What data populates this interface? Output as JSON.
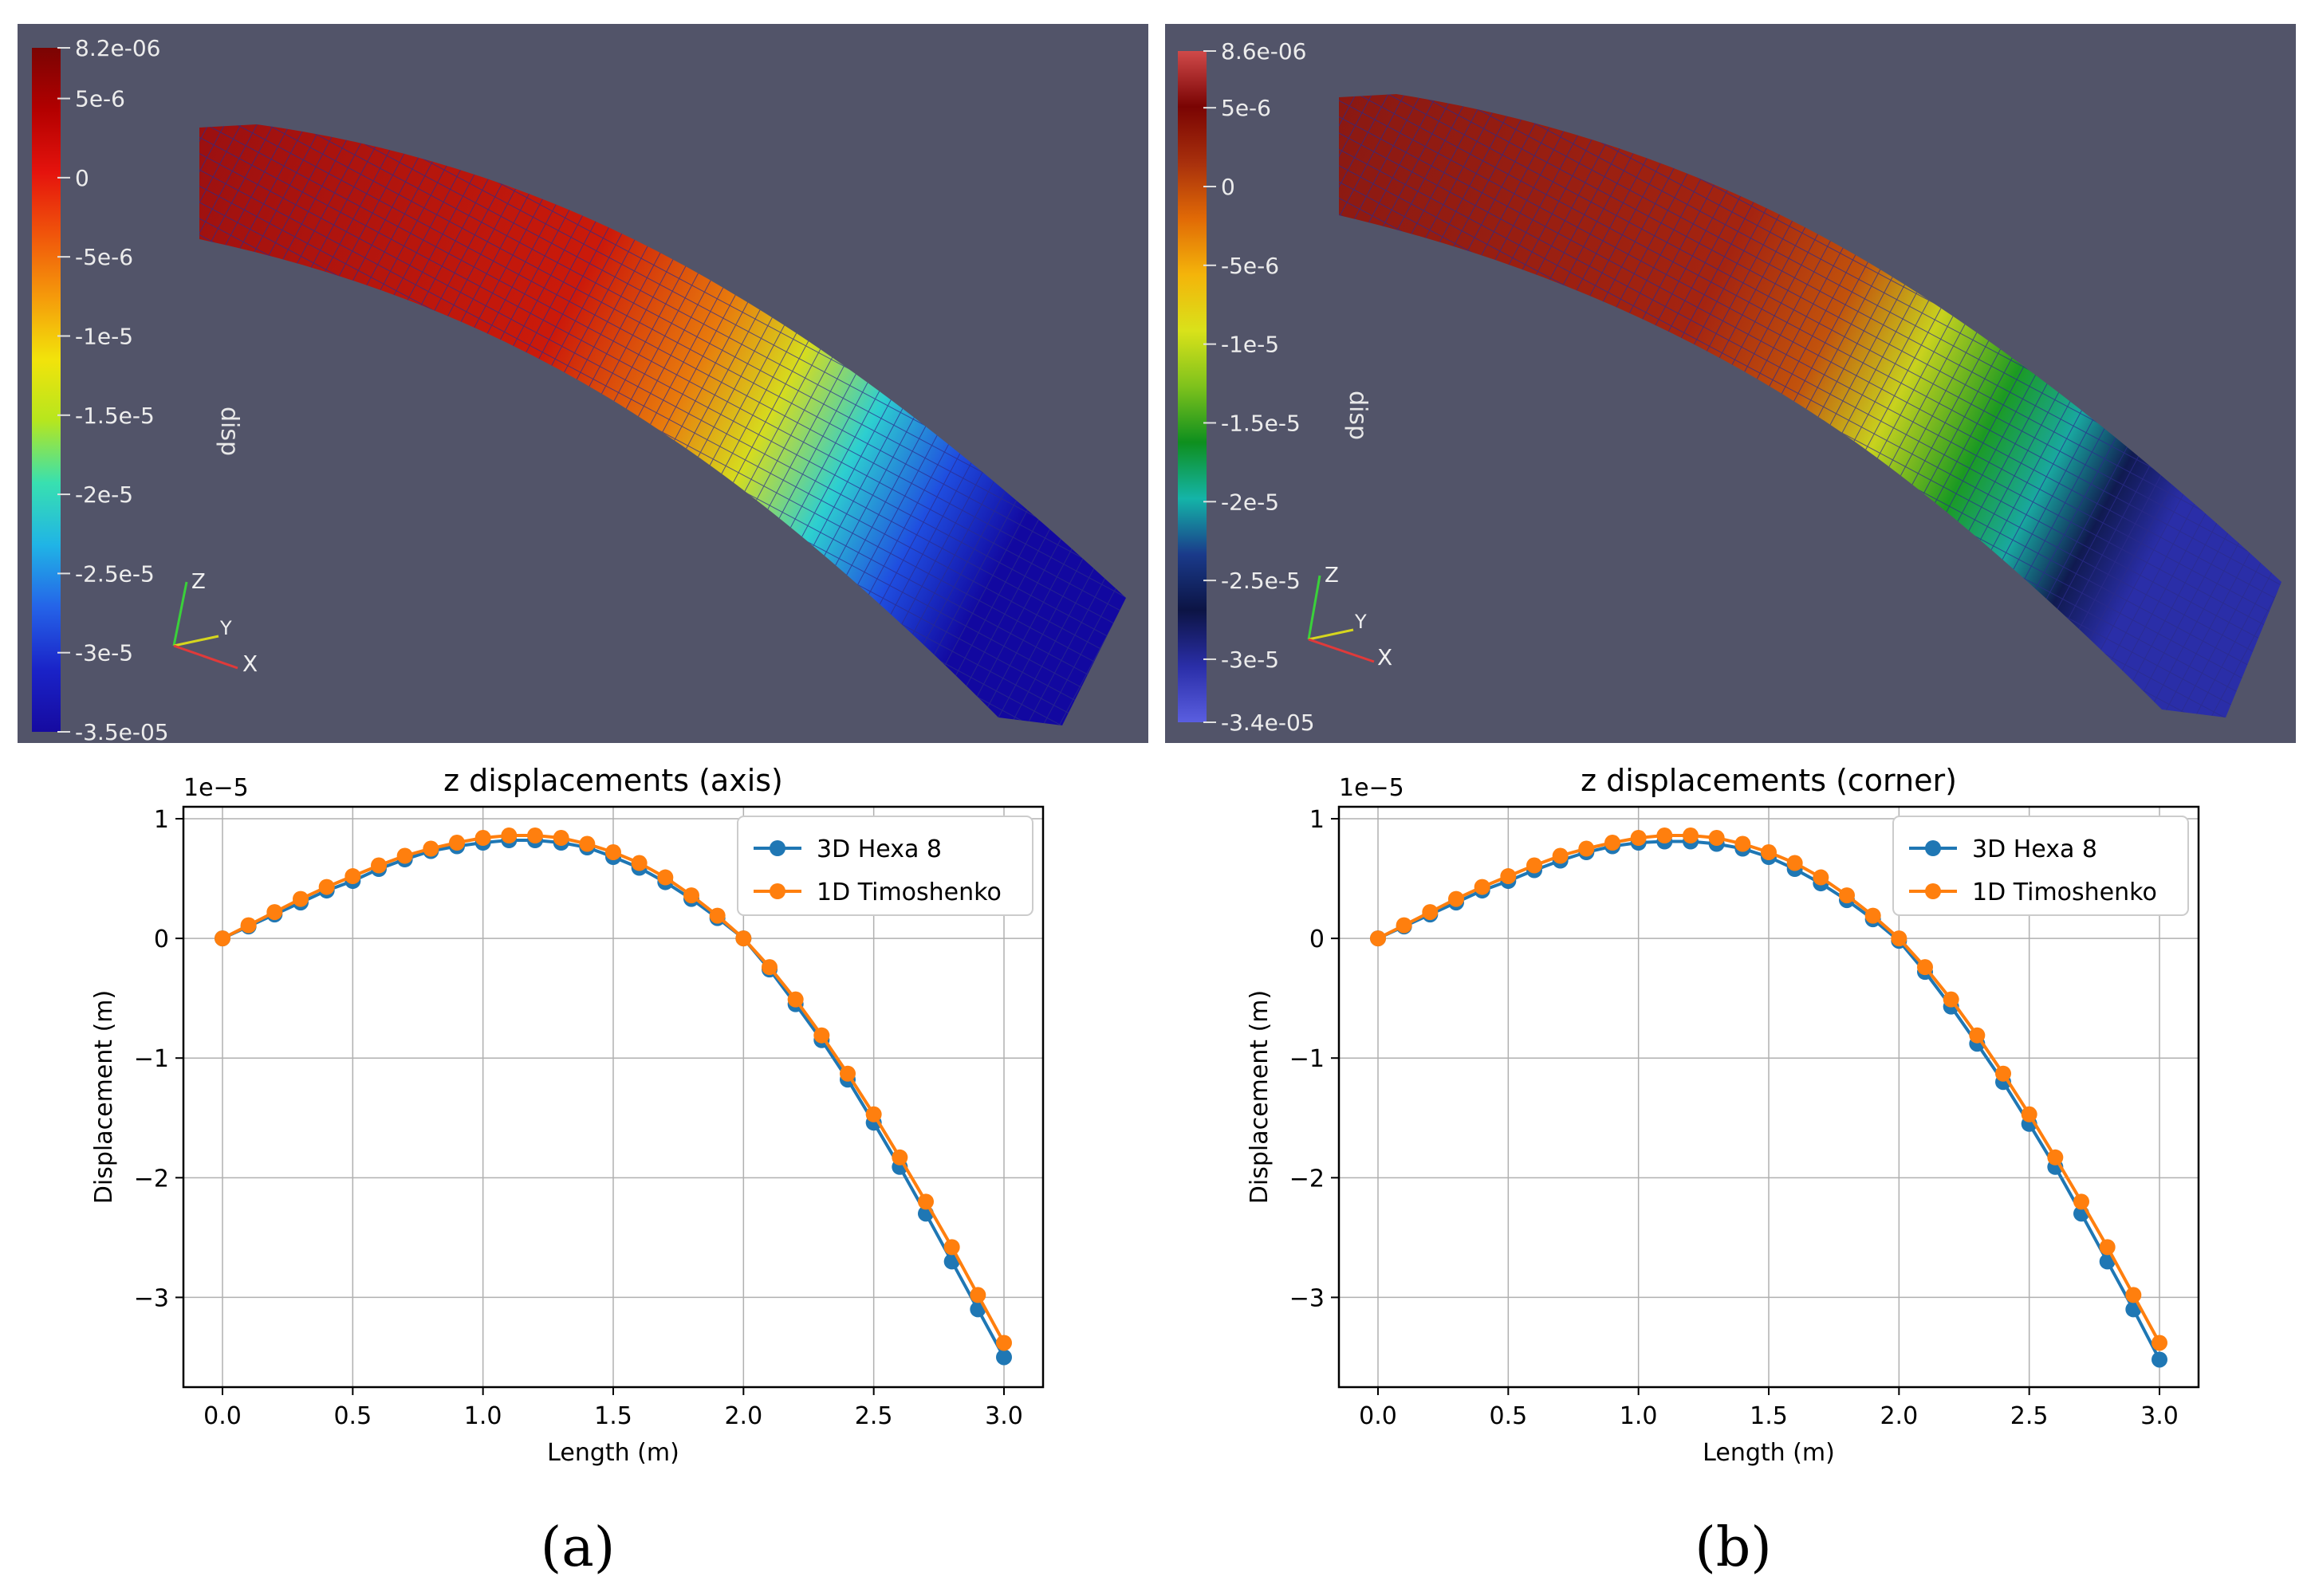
{
  "panels": [
    {
      "label": "(a)",
      "render": {
        "colorbar_title": "disp",
        "colorbar_ticks": [
          "8.2e-06",
          "5e-6",
          "0",
          "-5e-6",
          "-1e-5",
          "-1.5e-5",
          "-2e-5",
          "-2.5e-5",
          "-3e-5",
          "-3.5e-05"
        ],
        "colorbar_values": [
          8.2e-06,
          5e-06,
          0,
          -5e-06,
          -1e-05,
          -1.5e-05,
          -2e-05,
          -2.5e-05,
          -3e-05,
          -3.5e-05
        ],
        "colormap": [
          "#7a0403",
          "#b30000",
          "#e5130d",
          "#f0550b",
          "#f59a0b",
          "#f2e30b",
          "#b6e61e",
          "#38e0b0",
          "#20b4e6",
          "#2563e8",
          "#1a23c8",
          "#160aa0"
        ],
        "axes_labels": [
          "Z",
          "Y",
          "X"
        ]
      }
    },
    {
      "label": "(b)",
      "render": {
        "colorbar_title": "disp",
        "colorbar_ticks": [
          "8.6e-06",
          "5e-6",
          "0",
          "-5e-6",
          "-1e-5",
          "-1.5e-5",
          "-2e-5",
          "-2.5e-5",
          "-3e-5",
          "-3.4e-05"
        ],
        "colorbar_values": [
          8.6e-06,
          5e-06,
          0,
          -5e-06,
          -1e-05,
          -1.5e-05,
          -2e-05,
          -2.5e-05,
          -3e-05,
          -3.4e-05
        ],
        "colormap": [
          "#d04a4a",
          "#7a0403",
          "#a8300c",
          "#e16a06",
          "#f4b40a",
          "#d9e21a",
          "#7ec21c",
          "#0e8f1e",
          "#14b4a8",
          "#1a3a8a",
          "#0c1444",
          "#2a2ea8",
          "#5a5ee0"
        ],
        "axes_labels": [
          "Z",
          "Y",
          "X"
        ]
      }
    }
  ],
  "chart_data": [
    {
      "type": "line",
      "title": "z displacements (axis)",
      "xlabel": "Length (m)",
      "ylabel": "Displacement (m)",
      "offset_label": "1e−5",
      "xlim": [
        -0.15,
        3.15
      ],
      "ylim": [
        -3.75,
        1.1
      ],
      "xticks": [
        0.0,
        0.5,
        1.0,
        1.5,
        2.0,
        2.5,
        3.0
      ],
      "xtick_labels": [
        "0.0",
        "0.5",
        "1.0",
        "1.5",
        "2.0",
        "2.5",
        "3.0"
      ],
      "yticks": [
        -3,
        -2,
        -1,
        0,
        1
      ],
      "ytick_labels": [
        "−3",
        "−2",
        "−1",
        "0",
        "1"
      ],
      "grid": true,
      "legend": "top-right",
      "x": [
        0,
        0.1,
        0.2,
        0.3,
        0.4,
        0.5,
        0.6,
        0.7,
        0.8,
        0.9,
        1.0,
        1.1,
        1.2,
        1.3,
        1.4,
        1.5,
        1.6,
        1.7,
        1.8,
        1.9,
        2.0,
        2.1,
        2.2,
        2.3,
        2.4,
        2.5,
        2.6,
        2.7,
        2.8,
        2.9,
        3.0
      ],
      "series": [
        {
          "name": "3D Hexa 8",
          "color": "#1f77b4",
          "values": [
            0,
            0.1,
            0.2,
            0.3,
            0.4,
            0.48,
            0.58,
            0.66,
            0.73,
            0.77,
            0.8,
            0.82,
            0.82,
            0.8,
            0.76,
            0.68,
            0.59,
            0.47,
            0.33,
            0.17,
            0,
            -0.26,
            -0.55,
            -0.85,
            -1.18,
            -1.54,
            -1.91,
            -2.3,
            -2.7,
            -3.1,
            -3.5
          ]
        },
        {
          "name": "1D Timoshenko",
          "color": "#ff7f0e",
          "values": [
            0,
            0.11,
            0.22,
            0.33,
            0.43,
            0.52,
            0.61,
            0.69,
            0.75,
            0.8,
            0.84,
            0.86,
            0.86,
            0.84,
            0.79,
            0.72,
            0.63,
            0.51,
            0.36,
            0.19,
            0,
            -0.24,
            -0.51,
            -0.81,
            -1.13,
            -1.47,
            -1.83,
            -2.2,
            -2.58,
            -2.98,
            -3.38
          ]
        }
      ]
    },
    {
      "type": "line",
      "title": "z displacements (corner)",
      "xlabel": "Length (m)",
      "ylabel": "Displacement (m)",
      "offset_label": "1e−5",
      "xlim": [
        -0.15,
        3.15
      ],
      "ylim": [
        -3.75,
        1.1
      ],
      "xticks": [
        0.0,
        0.5,
        1.0,
        1.5,
        2.0,
        2.5,
        3.0
      ],
      "xtick_labels": [
        "0.0",
        "0.5",
        "1.0",
        "1.5",
        "2.0",
        "2.5",
        "3.0"
      ],
      "yticks": [
        -3,
        -2,
        -1,
        0,
        1
      ],
      "ytick_labels": [
        "−3",
        "−2",
        "−1",
        "0",
        "1"
      ],
      "grid": true,
      "legend": "top-right",
      "x": [
        0,
        0.1,
        0.2,
        0.3,
        0.4,
        0.5,
        0.6,
        0.7,
        0.8,
        0.9,
        1.0,
        1.1,
        1.2,
        1.3,
        1.4,
        1.5,
        1.6,
        1.7,
        1.8,
        1.9,
        2.0,
        2.1,
        2.2,
        2.3,
        2.4,
        2.5,
        2.6,
        2.7,
        2.8,
        2.9,
        3.0
      ],
      "series": [
        {
          "name": "3D Hexa 8",
          "color": "#1f77b4",
          "values": [
            0,
            0.1,
            0.2,
            0.3,
            0.4,
            0.48,
            0.57,
            0.65,
            0.72,
            0.77,
            0.8,
            0.81,
            0.81,
            0.79,
            0.75,
            0.68,
            0.58,
            0.46,
            0.32,
            0.16,
            -0.02,
            -0.28,
            -0.57,
            -0.88,
            -1.2,
            -1.55,
            -1.91,
            -2.3,
            -2.7,
            -3.1,
            -3.52
          ]
        },
        {
          "name": "1D Timoshenko",
          "color": "#ff7f0e",
          "values": [
            0,
            0.11,
            0.22,
            0.33,
            0.43,
            0.52,
            0.61,
            0.69,
            0.75,
            0.8,
            0.84,
            0.86,
            0.86,
            0.84,
            0.79,
            0.72,
            0.63,
            0.51,
            0.36,
            0.19,
            0,
            -0.24,
            -0.51,
            -0.81,
            -1.13,
            -1.47,
            -1.83,
            -2.2,
            -2.58,
            -2.98,
            -3.38
          ]
        }
      ]
    }
  ]
}
